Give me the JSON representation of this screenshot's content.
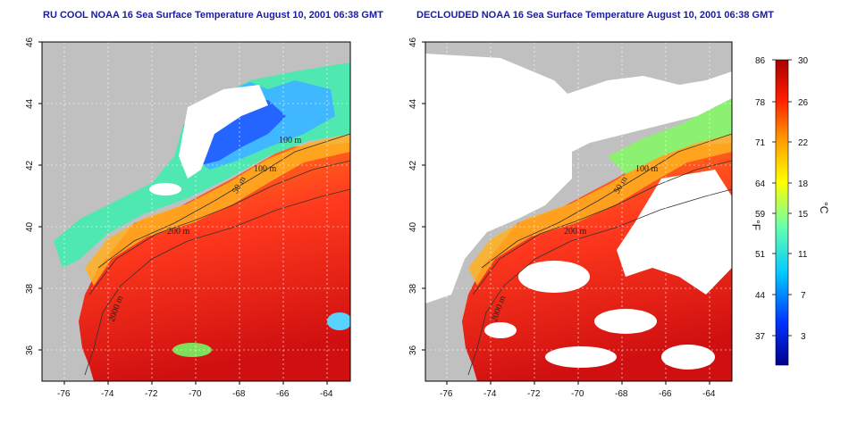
{
  "titles": {
    "left": "RU COOL NOAA 16 Sea Surface Temperature August 10, 2001 06:38 GMT",
    "right": "DECLOUDED NOAA 16 Sea Surface Temperature August 10, 2001 06:38 GMT"
  },
  "map": {
    "lon_range": [
      -77,
      -63
    ],
    "lat_range": [
      35,
      46
    ],
    "lon_ticks": [
      -76,
      -74,
      -72,
      -70,
      -68,
      -66,
      -64
    ],
    "lat_ticks": [
      36,
      38,
      40,
      42,
      44,
      46
    ],
    "lon_labels": [
      "-76",
      "-74",
      "-72",
      "-70",
      "-68",
      "-66",
      "-64"
    ],
    "lat_labels": [
      "36",
      "38",
      "40",
      "42",
      "44",
      "46"
    ],
    "contour_labels": [
      "100 m",
      "100 m",
      "50 m",
      "200 m",
      "2000 m"
    ],
    "colors": {
      "land": "#c0c0c0",
      "cloud": "#ffffff",
      "grid": "#ffffff"
    }
  },
  "colorbar": {
    "celsius_ticks": [
      "30",
      "26",
      "22",
      "18",
      "15",
      "11",
      "7",
      "3"
    ],
    "fahrenheit_ticks": [
      "86",
      "78",
      "71",
      "64",
      "59",
      "51",
      "44",
      "37"
    ],
    "celsius_unit": "°C",
    "fahrenheit_unit": "°F",
    "range_c": [
      0,
      30
    ],
    "range_f": [
      32,
      86
    ],
    "stops": [
      "#00008b",
      "#0033ff",
      "#00c8ff",
      "#66ffb0",
      "#ffff00",
      "#ff9a00",
      "#ff1e00",
      "#a80000"
    ]
  }
}
